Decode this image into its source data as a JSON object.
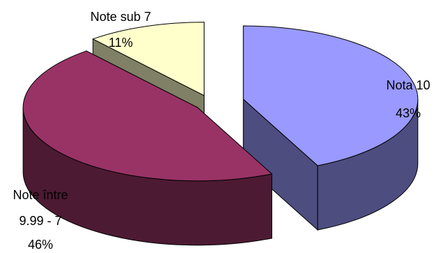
{
  "chart_data": {
    "type": "pie",
    "three_d": true,
    "exploded": true,
    "slices": [
      {
        "name": "Nota 10",
        "value": 43,
        "percent_label": "43%",
        "color": "#9999ff",
        "dark_color": "#4d4d80"
      },
      {
        "name": "Note între 9.99 - 7",
        "name_lines": [
          "Note între",
          "9.99 - 7"
        ],
        "value": 46,
        "percent_label": "46%",
        "color": "#993366",
        "dark_color": "#4d1a33"
      },
      {
        "name": "Note sub 7",
        "value": 11,
        "percent_label": "11%",
        "color": "#ffffcc",
        "dark_color": "#808066"
      }
    ]
  }
}
